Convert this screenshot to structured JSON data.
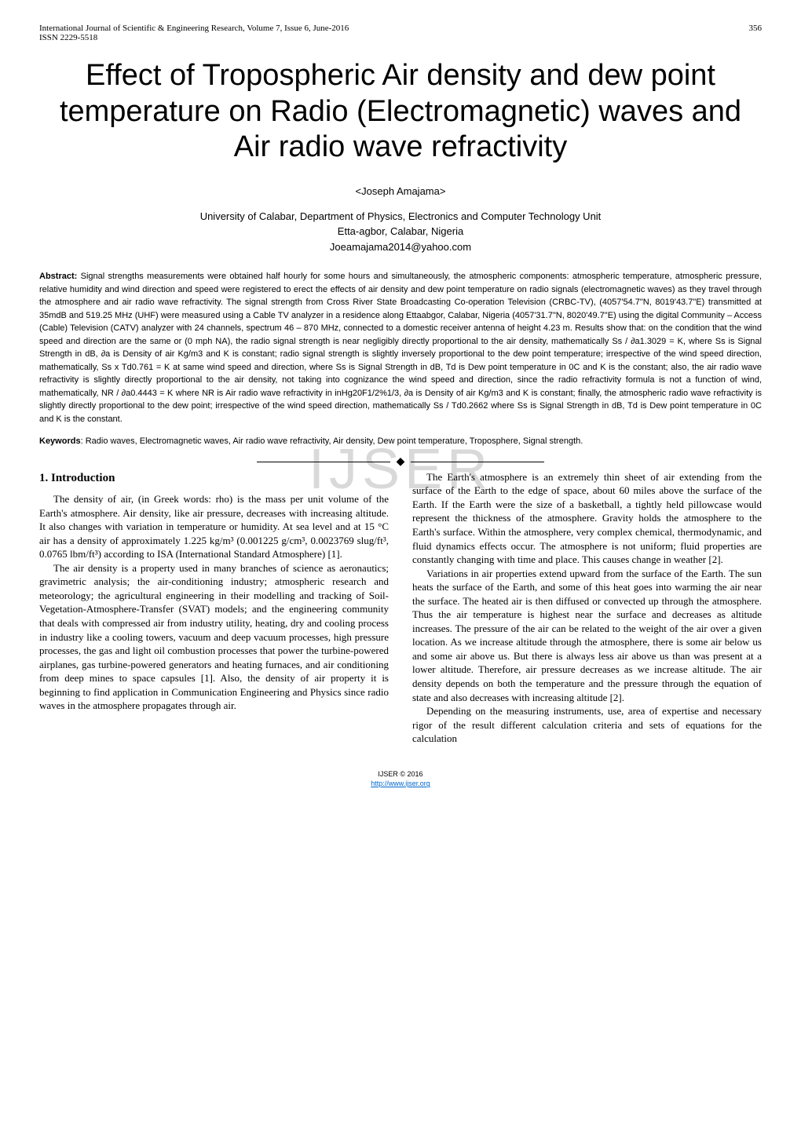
{
  "header": {
    "journal": "International Journal of Scientific & Engineering Research, Volume 7, Issue 6, June-2016",
    "issn": "ISSN 2229-5518",
    "page": "356"
  },
  "title": "Effect of Tropospheric Air density and dew point temperature on Radio (Electromagnetic) waves and Air radio wave refractivity",
  "author": "<Joseph Amajama>",
  "affiliation": {
    "line1": "University of Calabar, Department of Physics, Electronics and Computer Technology Unit",
    "line2": "Etta-agbor, Calabar, Nigeria",
    "line3": "Joeamajama2014@yahoo.com"
  },
  "abstract": {
    "label": "Abstract:",
    "text": " Signal strengths measurements were obtained half hourly for some hours and simultaneously, the atmospheric components: atmospheric temperature, atmospheric pressure, relative humidity and wind direction and speed were registered to erect the effects of air density and dew point temperature on radio signals (electromagnetic waves) as they travel through the atmosphere and air radio wave refractivity. The signal strength from Cross River State Broadcasting Co-operation Television (CRBC-TV), (4057'54.7\"N, 8019'43.7\"E) transmitted at 35mdB and 519.25 MHz (UHF) were measured using a Cable TV analyzer in a residence along Ettaabgor, Calabar, Nigeria (4057'31.7\"N, 8020'49.7\"E) using the digital Community – Access (Cable) Television (CATV) analyzer with 24 channels, spectrum 46 – 870 MHz, connected to a domestic receiver antenna of height 4.23 m. Results show that: on the condition that the wind speed and direction are the same or (0 mph NA), the radio signal strength is near negligibly directly proportional to the air density, mathematically Ss / ∂a1.3029 = K, where Ss is Signal Strength in dB, ∂a is Density of air Kg/m3 and K is constant; radio signal strength is slightly inversely proportional to the dew point temperature; irrespective of the wind speed direction, mathematically,  Ss x Td0.761 = K at same wind speed and direction, where Ss is Signal Strength in dB, Td is Dew point temperature in 0C and K is the constant; also, the air radio wave refractivity is slightly directly proportional to the air density, not taking into cognizance the wind speed and direction, since the radio refractivity formula is not a function of wind, mathematically, NR / ∂a0.4443 = K where NR is Air radio wave refractivity in inHg20F1/2%1/3, ∂a is Density of air Kg/m3 and K is constant; finally, the atmospheric radio wave refractivity is slightly directly proportional to the dew point; irrespective of the wind speed direction, mathematically Ss / Td0.2662 where Ss is Signal Strength in dB, Td is Dew point temperature in 0C and K is the constant."
  },
  "keywords": {
    "label": "Keywords",
    "text": ": Radio waves, Electromagnetic waves, Air radio wave refractivity, Air density, Dew point temperature, Troposphere, Signal strength."
  },
  "watermark": "IJSER",
  "section1": {
    "heading": "1.  Introduction",
    "p1": "The density of air, (in Greek words: rho) is the mass per unit volume of the Earth's atmosphere. Air density, like air pressure, decreases with increasing altitude. It also changes with variation in temperature or humidity. At sea level and at 15 °C air has a density of approximately 1.225 kg/m³ (0.001225 g/cm³, 0.0023769 slug/ft³, 0.0765 lbm/ft³) according to ISA (International Standard Atmosphere) [1].",
    "p2": "The air density is a property used in many branches of science as aeronautics; gravimetric analysis; the air-conditioning industry; atmospheric research and meteorology; the agricultural engineering in their modelling and tracking of Soil-Vegetation-Atmosphere-Transfer (SVAT) models; and the engineering community that deals with compressed air from industry utility, heating, dry and cooling process in industry like a cooling towers, vacuum and deep vacuum processes, high pressure processes, the gas and light oil combustion processes that power the turbine-powered airplanes, gas turbine-powered generators and heating furnaces, and air conditioning from deep mines to space capsules [1]. Also, the density of air property it is beginning to find application in Communication Engineering and Physics since radio waves in the atmosphere propagates through air.",
    "p3": "The Earth's atmosphere is an extremely thin sheet of air extending from the surface of the Earth to the edge of space, about 60 miles above the surface of the Earth. If the Earth were the size of a basketball, a tightly held pillowcase would represent the thickness of the atmosphere. Gravity holds the atmosphere to the Earth's surface. Within the atmosphere, very complex chemical, thermodynamic, and fluid dynamics effects occur. The atmosphere is not uniform; fluid properties are constantly changing with time and place. This causes change in weather [2].",
    "p4": "Variations in air properties extend upward from the surface of the Earth. The sun heats the surface of the Earth, and some of this heat goes into warming the air near the surface. The heated air is then diffused or convected up through the atmosphere. Thus the air temperature is highest near the surface and decreases as altitude increases. The pressure of the air can be related to the weight of the air over a given location. As we increase altitude through the atmosphere, there is some air below us and some air above us. But there is always less air above us than was present at a lower altitude. Therefore, air pressure decreases as we increase altitude. The air density depends on both the temperature and the pressure through the equation of state and also decreases with increasing altitude [2].",
    "p5": "Depending on the measuring instruments, use, area of expertise and necessary rigor of the result different calculation criteria and sets of equations for the calculation"
  },
  "footer": {
    "copyright": "IJSER © 2016",
    "url": "http://www.ijser.org"
  }
}
